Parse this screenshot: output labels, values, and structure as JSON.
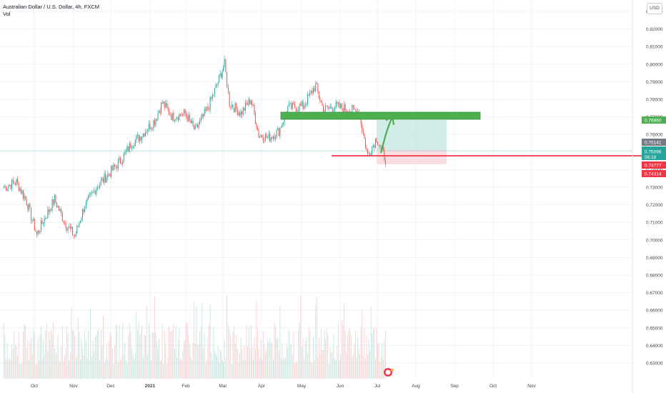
{
  "legend": {
    "symbol": "Australian Dollar / U.S. Dollar, 4h, FXCM",
    "volume_label": "Vol"
  },
  "currency_button": "USD",
  "price_axis": {
    "ticks": [
      "0.83000",
      "0.82000",
      "0.81000",
      "0.80000",
      "0.79000",
      "0.78000",
      "0.77000",
      "0.76000",
      "0.75000",
      "0.74000",
      "0.73000",
      "0.72000",
      "0.71000",
      "0.70000",
      "0.69000",
      "0.68000",
      "0.67000",
      "0.66000",
      "0.65000",
      "0.64000",
      "0.63000"
    ]
  },
  "time_axis": {
    "ticks": [
      "Oct",
      "Nov",
      "Dec",
      "2021",
      "Feb",
      "Mar",
      "Apr",
      "May",
      "Jun",
      "Jul",
      "Aug",
      "Sep",
      "Oct",
      "Nov"
    ]
  },
  "price_tags": {
    "target": {
      "value": "0.76860",
      "color": "#4caf50"
    },
    "last_close": {
      "value": "0.75141",
      "color": "#787b86"
    },
    "current": {
      "value": "0.75096",
      "countdown": "56:18",
      "color": "#26a69a"
    },
    "stop_line": {
      "value": "0.74777",
      "color": "#f23645"
    },
    "stop": {
      "value": "0.74314",
      "color": "#f23645"
    }
  },
  "colors": {
    "up": "#26a69a",
    "down": "#ef5350",
    "zone": "#4caf50",
    "line": "#f23645",
    "target_fill": "#b2dfdb",
    "stop_fill": "#f8d7da"
  },
  "chart_data": {
    "type": "candlestick",
    "ylim": [
      0.625,
      0.835
    ],
    "close_points": [
      {
        "date": "2020-09-04",
        "close": 0.73
      },
      {
        "date": "2020-09-14",
        "close": 0.733
      },
      {
        "date": "2020-09-22",
        "close": 0.722
      },
      {
        "date": "2020-09-30",
        "close": 0.703
      },
      {
        "date": "2020-10-06",
        "close": 0.712
      },
      {
        "date": "2020-10-14",
        "close": 0.723
      },
      {
        "date": "2020-10-22",
        "close": 0.71
      },
      {
        "date": "2020-10-30",
        "close": 0.702
      },
      {
        "date": "2020-11-06",
        "close": 0.718
      },
      {
        "date": "2020-11-16",
        "close": 0.73
      },
      {
        "date": "2020-11-25",
        "close": 0.737
      },
      {
        "date": "2020-12-05",
        "close": 0.745
      },
      {
        "date": "2020-12-14",
        "close": 0.755
      },
      {
        "date": "2020-12-22",
        "close": 0.76
      },
      {
        "date": "2021-01-01",
        "close": 0.768
      },
      {
        "date": "2021-01-07",
        "close": 0.778
      },
      {
        "date": "2021-01-15",
        "close": 0.77
      },
      {
        "date": "2021-01-25",
        "close": 0.772
      },
      {
        "date": "2021-02-02",
        "close": 0.762
      },
      {
        "date": "2021-02-12",
        "close": 0.775
      },
      {
        "date": "2021-02-20",
        "close": 0.79
      },
      {
        "date": "2021-02-25",
        "close": 0.8
      },
      {
        "date": "2021-03-01",
        "close": 0.778
      },
      {
        "date": "2021-03-10",
        "close": 0.772
      },
      {
        "date": "2021-03-18",
        "close": 0.78
      },
      {
        "date": "2021-03-24",
        "close": 0.76
      },
      {
        "date": "2021-04-01",
        "close": 0.758
      },
      {
        "date": "2021-04-09",
        "close": 0.762
      },
      {
        "date": "2021-04-16",
        "close": 0.775
      },
      {
        "date": "2021-04-28",
        "close": 0.776
      },
      {
        "date": "2021-05-08",
        "close": 0.788
      },
      {
        "date": "2021-05-14",
        "close": 0.774
      },
      {
        "date": "2021-05-24",
        "close": 0.776
      },
      {
        "date": "2021-06-04",
        "close": 0.774
      },
      {
        "date": "2021-06-11",
        "close": 0.773
      },
      {
        "date": "2021-06-18",
        "close": 0.748
      },
      {
        "date": "2021-06-25",
        "close": 0.758
      },
      {
        "date": "2021-07-02",
        "close": 0.746
      },
      {
        "date": "2021-07-08",
        "close": 0.75
      },
      {
        "date": "2021-07-12",
        "close": 0.751
      }
    ]
  }
}
